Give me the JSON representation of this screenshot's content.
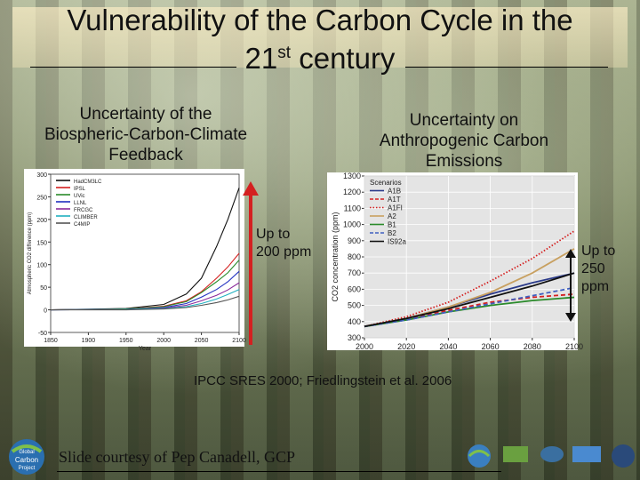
{
  "slide": {
    "title_line1": "Vulnerability of the Carbon Cycle in the",
    "title_line2_pre": "21",
    "title_line2_sup": "st",
    "title_line2_post": " century",
    "left_heading": [
      "Uncertainty of the",
      "Biospheric-Carbon-Climate",
      "Feedback"
    ],
    "right_heading": [
      "Uncertainty on",
      "Anthropogenic Carbon",
      "Emissions"
    ],
    "left_note": [
      "Up to",
      "200 ppm"
    ],
    "right_note": [
      "Up to",
      "250",
      "ppm"
    ],
    "citation": "IPCC SRES 2000; Friedlingstein et al. 2006",
    "courtesy": "Slide courtesy of Pep Canadell, GCP",
    "logo_text": [
      "Global",
      "Carbon",
      "Project"
    ]
  },
  "colors": {
    "arrow_red": "#d42020",
    "arrow_black": "#111111"
  },
  "chart_data": [
    {
      "type": "line",
      "xlim": [
        1850,
        2100
      ],
      "ylim": [
        -50,
        300
      ],
      "x_ticks": [
        "1850",
        "1900",
        "1950",
        "2000",
        "2050",
        "2100"
      ],
      "y_ticks": [
        "300",
        "250",
        "200",
        "150",
        "100",
        "50",
        "0",
        "-50"
      ],
      "ylabel": "Atmospheric CO2 difference (ppm)",
      "xlabel": "Year",
      "legend_position": "top-left",
      "series": [
        {
          "name": "HadCM3LC",
          "color": "#111111",
          "x": [
            1850,
            1950,
            2000,
            2030,
            2050,
            2070,
            2085,
            2100
          ],
          "y": [
            0,
            3,
            12,
            35,
            70,
            140,
            200,
            270
          ]
        },
        {
          "name": "IPSL",
          "color": "#d42020",
          "x": [
            1850,
            1950,
            2000,
            2030,
            2050,
            2070,
            2085,
            2100
          ],
          "y": [
            0,
            2,
            8,
            20,
            40,
            70,
            95,
            125
          ]
        },
        {
          "name": "UVic",
          "color": "#2a8a2a",
          "x": [
            1850,
            1950,
            2000,
            2030,
            2050,
            2070,
            2085,
            2100
          ],
          "y": [
            0,
            2,
            7,
            18,
            38,
            62,
            82,
            110
          ]
        },
        {
          "name": "LLNL",
          "color": "#2030c0",
          "x": [
            1850,
            1950,
            2000,
            2030,
            2050,
            2070,
            2085,
            2100
          ],
          "y": [
            0,
            1,
            5,
            14,
            28,
            45,
            62,
            85
          ]
        },
        {
          "name": "FRCGC",
          "color": "#8a2a9a",
          "x": [
            1850,
            1950,
            2000,
            2030,
            2050,
            2070,
            2085,
            2100
          ],
          "y": [
            0,
            1,
            4,
            10,
            20,
            32,
            44,
            60
          ]
        },
        {
          "name": "CLIMBER",
          "color": "#20b0c0",
          "x": [
            1850,
            1950,
            2000,
            2030,
            2050,
            2070,
            2085,
            2100
          ],
          "y": [
            0,
            1,
            3,
            7,
            14,
            24,
            34,
            45
          ]
        },
        {
          "name": "C4MIP",
          "color": "#555555",
          "x": [
            1850,
            1950,
            2000,
            2030,
            2050,
            2070,
            2085,
            2100
          ],
          "y": [
            0,
            0,
            2,
            5,
            10,
            16,
            22,
            30
          ]
        }
      ]
    },
    {
      "type": "line",
      "xlim": [
        2000,
        2100
      ],
      "ylim": [
        300,
        1300
      ],
      "x_ticks": [
        "2000",
        "2020",
        "2040",
        "2060",
        "2080",
        "2100"
      ],
      "y_ticks": [
        "1300",
        "1200",
        "1100",
        "1000",
        "900",
        "800",
        "700",
        "600",
        "500",
        "400",
        "300"
      ],
      "ylabel": "CO2 concentration (ppm)",
      "legend_title": "Scenarios",
      "legend_position": "top-left",
      "series": [
        {
          "name": "A1B",
          "color": "#2a3a8a",
          "dash": "solid",
          "x": [
            2000,
            2020,
            2040,
            2060,
            2080,
            2100
          ],
          "y": [
            370,
            420,
            490,
            570,
            640,
            700
          ]
        },
        {
          "name": "A1T",
          "color": "#d42020",
          "dash": "dash",
          "x": [
            2000,
            2020,
            2040,
            2060,
            2080,
            2100
          ],
          "y": [
            370,
            415,
            470,
            520,
            550,
            570
          ]
        },
        {
          "name": "A1FI",
          "color": "#d42020",
          "dash": "dot",
          "x": [
            2000,
            2020,
            2040,
            2060,
            2080,
            2100
          ],
          "y": [
            370,
            430,
            520,
            650,
            790,
            960
          ]
        },
        {
          "name": "A2",
          "color": "#c8a060",
          "dash": "solid",
          "x": [
            2000,
            2020,
            2040,
            2060,
            2080,
            2100
          ],
          "y": [
            370,
            420,
            490,
            580,
            700,
            850
          ]
        },
        {
          "name": "B1",
          "color": "#2a8a2a",
          "dash": "solid",
          "x": [
            2000,
            2020,
            2040,
            2060,
            2080,
            2100
          ],
          "y": [
            370,
            410,
            460,
            500,
            530,
            550
          ]
        },
        {
          "name": "B2",
          "color": "#4060c0",
          "dash": "dash",
          "x": [
            2000,
            2020,
            2040,
            2060,
            2080,
            2100
          ],
          "y": [
            370,
            410,
            460,
            510,
            560,
            610
          ]
        },
        {
          "name": "IS92a",
          "color": "#111111",
          "dash": "solid",
          "x": [
            2000,
            2020,
            2040,
            2060,
            2080,
            2100
          ],
          "y": [
            370,
            420,
            480,
            550,
            620,
            700
          ]
        }
      ]
    }
  ]
}
